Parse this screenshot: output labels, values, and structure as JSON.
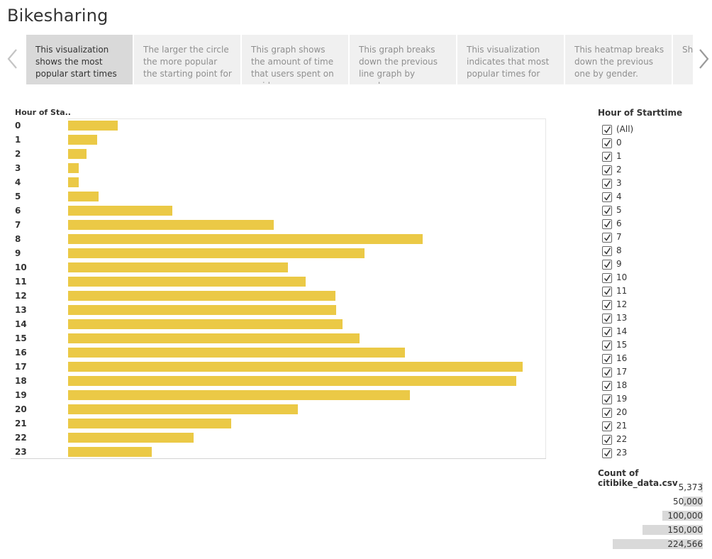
{
  "header": {
    "title": "Bikesharing"
  },
  "story": {
    "points": [
      {
        "text": "This visualization shows the most popular start times",
        "active": true
      },
      {
        "text": "The larger the circle the more popular the starting point for",
        "active": false
      },
      {
        "text": "This graph shows the amount of time that users spent on a ride.",
        "active": false
      },
      {
        "text": "This graph breaks down the previous line graph by gender.",
        "active": false
      },
      {
        "text": "This visualization indicates that most popular times for",
        "active": false
      },
      {
        "text": "This heatmap breaks down the previous one by gender.",
        "active": false
      },
      {
        "text": "Sh rep tim",
        "active": false
      }
    ],
    "icons": {
      "prev": "chevron-left-icon",
      "next": "chevron-right-icon"
    }
  },
  "chart_data": {
    "type": "bar",
    "orientation": "horizontal",
    "row_header": "Hour of Sta..",
    "categories": [
      "0",
      "1",
      "2",
      "3",
      "4",
      "5",
      "6",
      "7",
      "8",
      "9",
      "10",
      "11",
      "12",
      "13",
      "14",
      "15",
      "16",
      "17",
      "18",
      "19",
      "20",
      "21",
      "22",
      "23"
    ],
    "values": [
      24500,
      14200,
      9000,
      5373,
      5373,
      15200,
      51500,
      101500,
      175000,
      146500,
      108500,
      117500,
      132000,
      132500,
      135500,
      144000,
      166500,
      224566,
      221500,
      169000,
      113500,
      80500,
      62000,
      41500
    ],
    "xlim": [
      0,
      224566
    ],
    "color": "#ebc946",
    "grid": false
  },
  "filter": {
    "title": "Hour of Starttime",
    "items": [
      "(All)",
      "0",
      "1",
      "2",
      "3",
      "4",
      "5",
      "6",
      "7",
      "8",
      "9",
      "10",
      "11",
      "12",
      "13",
      "14",
      "15",
      "16",
      "17",
      "18",
      "19",
      "20",
      "21",
      "22",
      "23"
    ],
    "checked": true
  },
  "legend": {
    "title": "Count of citibike_data.csv",
    "values": [
      "5,373",
      "50,000",
      "100,000",
      "150,000",
      "224,566"
    ],
    "colors": {
      "bar": "#d9d9d9"
    }
  }
}
